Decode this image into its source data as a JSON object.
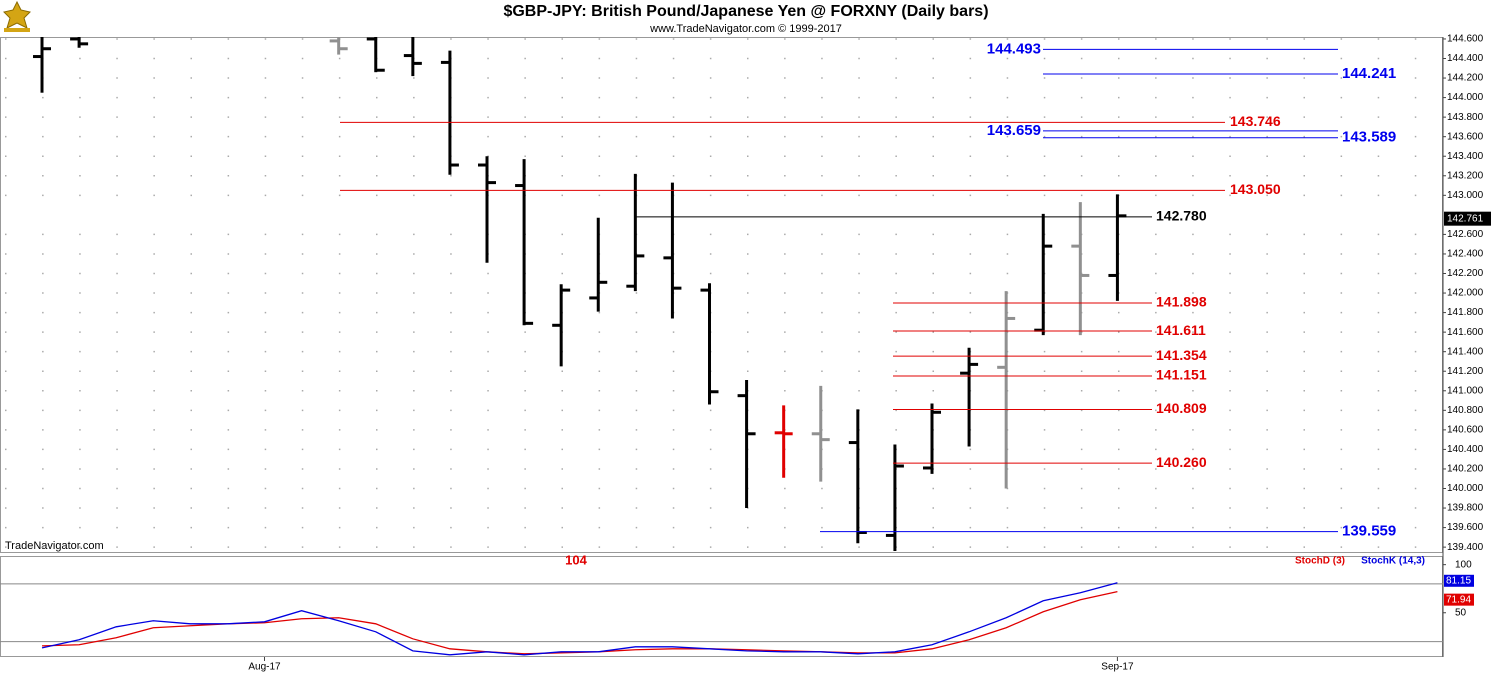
{
  "chart_data": [
    {
      "type": "ohlc",
      "title": "$GBP-JPY:  British Pound/Japanese Yen @ FORXNY  (Daily bars)",
      "subtitle": "www.TradeNavigator.com © 1999-2017",
      "watermark": "TradeNavigator.com",
      "x": [
        0,
        1,
        8,
        9,
        10,
        11,
        12,
        13,
        14,
        15,
        16,
        17,
        18,
        19,
        20,
        21,
        22,
        23,
        24,
        25,
        26,
        27,
        28,
        29
      ],
      "open": [
        144.42,
        144.6,
        144.58,
        144.6,
        144.43,
        144.36,
        143.31,
        143.1,
        141.67,
        141.95,
        142.07,
        142.36,
        142.03,
        140.95,
        140.57,
        140.56,
        140.47,
        139.52,
        140.21,
        141.18,
        141.24,
        141.62,
        142.48,
        142.18
      ],
      "high": [
        144.65,
        144.7,
        144.65,
        144.65,
        144.65,
        144.48,
        143.4,
        143.37,
        142.09,
        142.77,
        143.22,
        143.13,
        142.1,
        141.11,
        140.85,
        141.05,
        140.81,
        140.45,
        140.87,
        141.44,
        142.02,
        142.81,
        142.93,
        143.01
      ],
      "low": [
        144.05,
        144.51,
        144.44,
        144.26,
        144.22,
        143.21,
        142.31,
        141.67,
        141.25,
        141.81,
        142.02,
        141.74,
        140.86,
        139.8,
        140.11,
        140.07,
        139.44,
        139.36,
        140.15,
        140.43,
        140.0,
        141.57,
        141.57,
        141.92
      ],
      "close": [
        144.5,
        144.55,
        144.5,
        144.28,
        144.35,
        143.31,
        143.13,
        141.69,
        142.03,
        142.11,
        142.38,
        142.05,
        140.99,
        140.56,
        140.56,
        140.5,
        139.55,
        140.23,
        140.78,
        141.27,
        141.74,
        142.48,
        142.18,
        142.79
      ],
      "colors": [
        "#000000",
        "#000000",
        "#909090",
        "#000000",
        "#000000",
        "#000000",
        "#000000",
        "#000000",
        "#000000",
        "#000000",
        "#000000",
        "#000000",
        "#000000",
        "#000000",
        "#e00000",
        "#909090",
        "#000000",
        "#000000",
        "#000000",
        "#000000",
        "#909090",
        "#000000",
        "#909090",
        "#000000"
      ],
      "xlim": [
        -1.133,
        37.78
      ],
      "ylim": [
        139.34,
        144.62
      ],
      "yticks": [
        {
          "value": 139.4,
          "label": "139.400"
        },
        {
          "value": 139.6,
          "label": "139.600"
        },
        {
          "value": 139.8,
          "label": "139.800"
        },
        {
          "value": 140.0,
          "label": "140.000"
        },
        {
          "value": 140.2,
          "label": "140.200"
        },
        {
          "value": 140.4,
          "label": "140.400"
        },
        {
          "value": 140.6,
          "label": "140.600"
        },
        {
          "value": 140.8,
          "label": "140.800"
        },
        {
          "value": 141.0,
          "label": "141.000"
        },
        {
          "value": 141.2,
          "label": "141.200"
        },
        {
          "value": 141.4,
          "label": "141.400"
        },
        {
          "value": 141.6,
          "label": "141.600"
        },
        {
          "value": 141.8,
          "label": "141.800"
        },
        {
          "value": 142.0,
          "label": "142.000"
        },
        {
          "value": 142.2,
          "label": "142.200"
        },
        {
          "value": 142.4,
          "label": "142.400"
        },
        {
          "value": 142.6,
          "label": "142.600"
        },
        {
          "value": 143.0,
          "label": "143.000"
        },
        {
          "value": 143.2,
          "label": "143.200"
        },
        {
          "value": 143.4,
          "label": "143.400"
        },
        {
          "value": 143.6,
          "label": "143.600"
        },
        {
          "value": 143.8,
          "label": "143.800"
        },
        {
          "value": 144.0,
          "label": "144.000"
        },
        {
          "value": 144.2,
          "label": "144.200"
        },
        {
          "value": 144.4,
          "label": "144.400"
        },
        {
          "value": 144.6,
          "label": "144.600"
        }
      ],
      "grid": true,
      "last_value": 142.761,
      "levels": [
        {
          "value": 144.493,
          "color": "#0000ee"
        },
        {
          "value": 144.241,
          "color": "#0000ee"
        },
        {
          "value": 143.746,
          "color": "#e00000"
        },
        {
          "value": 143.659,
          "color": "#0000ee"
        },
        {
          "value": 143.589,
          "color": "#0000ee"
        },
        {
          "value": 143.05,
          "label": "143.050",
          "color": "#e00000"
        },
        {
          "value": 142.78,
          "label": "142.780",
          "color": "#000000"
        },
        {
          "value": 141.898,
          "color": "#e00000"
        },
        {
          "value": 141.611,
          "color": "#e00000"
        },
        {
          "value": 141.354,
          "color": "#e00000"
        },
        {
          "value": 141.151,
          "color": "#e00000"
        },
        {
          "value": 140.809,
          "color": "#e00000"
        },
        {
          "value": 140.26,
          "label": "140.260",
          "color": "#e00000"
        },
        {
          "value": 139.559,
          "color": "#0000ee"
        }
      ]
    },
    {
      "type": "line",
      "annotation": "104",
      "x": [
        0,
        1,
        2,
        3,
        4,
        5,
        6,
        7,
        8,
        9,
        10,
        11,
        12,
        13,
        14,
        15,
        16,
        17,
        18,
        19,
        20,
        21,
        22,
        23,
        24,
        25,
        26,
        27,
        28,
        29
      ],
      "series": [
        {
          "name": "StochD (3)",
          "color": "#e00000",
          "values": [
            15.6,
            16.7,
            24,
            34.4,
            36.5,
            38.5,
            39.6,
            43.8,
            44.8,
            38.5,
            22.9,
            12.5,
            9.4,
            7.3,
            8.3,
            9.4,
            11.5,
            12.5,
            12.5,
            11.5,
            10.4,
            9.4,
            8.3,
            8.3,
            12.5,
            21.9,
            34.4,
            51,
            63.5,
            71.94
          ]
        },
        {
          "name": "StochK (14,3)",
          "color": "#0000e0",
          "values": [
            13.5,
            21.9,
            35.4,
            41.7,
            38.5,
            38.5,
            40.6,
            52.1,
            41.7,
            30.2,
            10.4,
            6.3,
            9.4,
            6.3,
            9.4,
            9.4,
            14.6,
            14.6,
            12.5,
            10.4,
            9.4,
            9.4,
            7.3,
            9.4,
            16.7,
            30.2,
            44.8,
            62.5,
            70.8,
            81.15
          ]
        }
      ],
      "xlim": [
        -1.133,
        37.78
      ],
      "ylim": [
        4,
        109
      ],
      "yticks": [
        50,
        100
      ],
      "reference_lines": [
        20,
        80
      ],
      "xticks": [
        {
          "value": 6,
          "label": "Aug-17"
        },
        {
          "value": 29,
          "label": "Sep-17"
        }
      ]
    }
  ]
}
